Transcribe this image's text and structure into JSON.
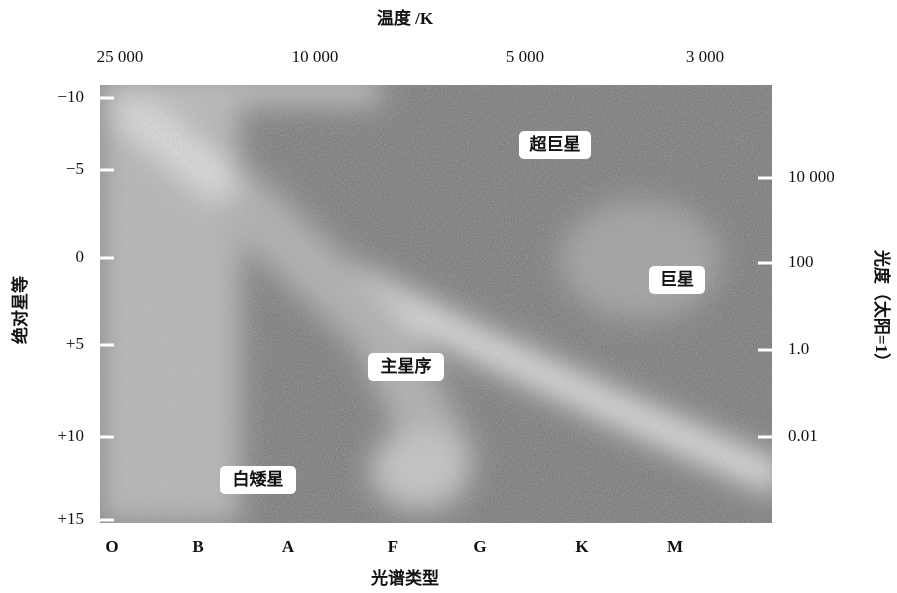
{
  "axes": {
    "top": {
      "title": "温度 /K",
      "ticks": [
        "25 000",
        "10 000",
        "5 000",
        "3 000"
      ]
    },
    "left": {
      "title": "绝对星等",
      "ticks": [
        "−10",
        "−5",
        "0",
        "+5",
        "+10",
        "+15"
      ]
    },
    "right": {
      "title": "光度（太阳=1）",
      "ticks": [
        "10 000",
        "100",
        "1.0",
        "0.01"
      ]
    },
    "bottom": {
      "title": "光谱类型",
      "ticks": [
        "O",
        "B",
        "A",
        "F",
        "G",
        "K",
        "M"
      ]
    }
  },
  "regions": [
    "超巨星",
    "巨星",
    "主星序",
    "白矮星"
  ]
}
